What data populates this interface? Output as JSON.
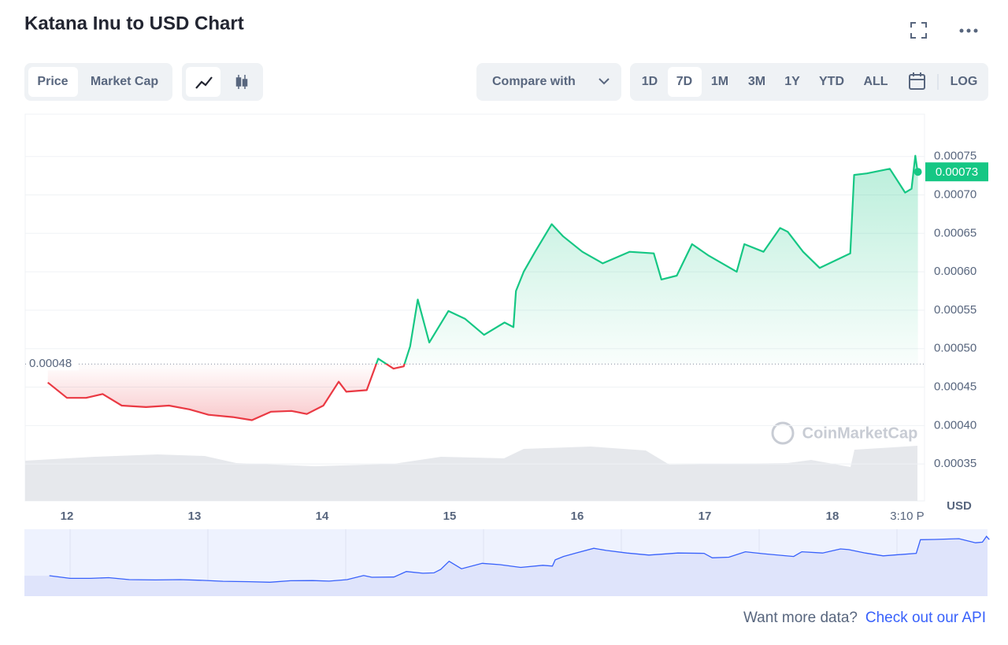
{
  "ui": {
    "price_tab": "Price",
    "market_cap_tab": "Market Cap",
    "compare": "Compare with",
    "ranges": [
      "1D",
      "7D",
      "1M",
      "3M",
      "1Y",
      "YTD",
      "ALL"
    ],
    "log": "LOG",
    "watermark": "CoinMarketCap",
    "footer_text": "Want more data?",
    "footer_link": "Check out our API"
  },
  "chart_data": {
    "type": "line",
    "title": "Katana Inu to USD Chart",
    "y_axis_label": "USD",
    "x": [
      11.85,
      12,
      12.15,
      12.28,
      12.43,
      12.62,
      12.8,
      12.96,
      13.11,
      13.3,
      13.45,
      13.6,
      13.76,
      13.88,
      14.01,
      14.13,
      14.19,
      14.35,
      14.44,
      14.56,
      14.64,
      14.69,
      14.75,
      14.84,
      14.99,
      15.12,
      15.27,
      15.43,
      15.5,
      15.52,
      15.58,
      15.67,
      15.8,
      15.89,
      16.04,
      16.2,
      16.41,
      16.6,
      16.66,
      16.78,
      16.9,
      17.03,
      17.25,
      17.31,
      17.46,
      17.59,
      17.65,
      17.77,
      17.9,
      18.14,
      18.17,
      18.27,
      18.45,
      18.57,
      18.62,
      18.65,
      18.67
    ],
    "series": [
      {
        "name": "Price",
        "color": "#16c784",
        "below_color": "#ea3943",
        "values": [
          0.000456,
          0.000436,
          0.000436,
          0.000441,
          0.000426,
          0.000424,
          0.000426,
          0.000421,
          0.000414,
          0.000411,
          0.000407,
          0.000418,
          0.000419,
          0.000415,
          0.000426,
          0.000457,
          0.000444,
          0.000446,
          0.000487,
          0.000474,
          0.000477,
          0.000503,
          0.000564,
          0.000508,
          0.000549,
          0.000539,
          0.000518,
          0.000534,
          0.000528,
          0.000575,
          0.0006,
          0.000626,
          0.000662,
          0.000646,
          0.000626,
          0.000611,
          0.000626,
          0.000624,
          0.00059,
          0.000595,
          0.000636,
          0.000621,
          0.0006,
          0.000636,
          0.000626,
          0.000657,
          0.000652,
          0.000626,
          0.000605,
          0.000624,
          0.000726,
          0.000728,
          0.000734,
          0.000703,
          0.000708,
          0.000751,
          0.000727
        ]
      }
    ],
    "reference_value": 0.00048,
    "current_price": 0.00073,
    "xlim": [
      11.673,
      18.722
    ],
    "xticks": [
      12,
      13,
      14,
      15,
      16,
      17,
      18,
      {
        "value": 18.586,
        "label": "3:10 P"
      }
    ],
    "ylim": [
      0.000302,
      0.000805
    ],
    "yticks": [
      0.00035,
      {
        "value": 0.0004,
        "label": "0.00040"
      },
      0.00045,
      {
        "value": 0.0005,
        "label": "0.00050"
      },
      0.00055,
      {
        "value": 0.0006,
        "label": "0.00060"
      },
      0.00065,
      {
        "value": 0.0007,
        "label": "0.00070"
      },
      0.00075
    ],
    "grid": true
  }
}
